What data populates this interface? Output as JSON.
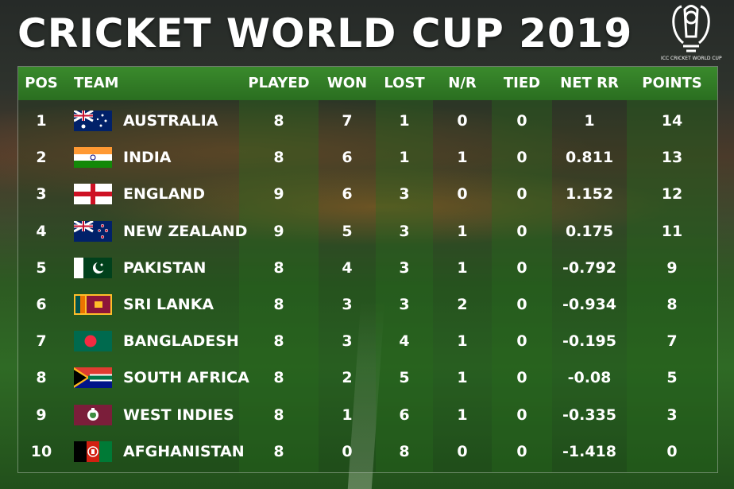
{
  "title": "CRICKET WORLD CUP 2019",
  "logo": {
    "icon": "trophy-icon",
    "text": "ICC CRICKET WORLD CUP"
  },
  "columns": [
    "POS",
    "TEAM",
    "PLAYED",
    "WON",
    "LOST",
    "N/R",
    "TIED",
    "NET RR",
    "POINTS"
  ],
  "rows": [
    {
      "pos": "1",
      "team": "AUSTRALIA",
      "flag": "australia-flag-icon",
      "played": "8",
      "won": "7",
      "lost": "1",
      "nr": "0",
      "tied": "0",
      "netrr": "1",
      "points": "14"
    },
    {
      "pos": "2",
      "team": "INDIA",
      "flag": "india-flag-icon",
      "played": "8",
      "won": "6",
      "lost": "1",
      "nr": "1",
      "tied": "0",
      "netrr": "0.811",
      "points": "13"
    },
    {
      "pos": "3",
      "team": "ENGLAND",
      "flag": "england-flag-icon",
      "played": "9",
      "won": "6",
      "lost": "3",
      "nr": "0",
      "tied": "0",
      "netrr": "1.152",
      "points": "12"
    },
    {
      "pos": "4",
      "team": "NEW ZEALAND",
      "flag": "new-zealand-flag-icon",
      "played": "9",
      "won": "5",
      "lost": "3",
      "nr": "1",
      "tied": "0",
      "netrr": "0.175",
      "points": "11"
    },
    {
      "pos": "5",
      "team": "PAKISTAN",
      "flag": "pakistan-flag-icon",
      "played": "8",
      "won": "4",
      "lost": "3",
      "nr": "1",
      "tied": "0",
      "netrr": "-0.792",
      "points": "9"
    },
    {
      "pos": "6",
      "team": "SRI LANKA",
      "flag": "sri-lanka-flag-icon",
      "played": "8",
      "won": "3",
      "lost": "3",
      "nr": "2",
      "tied": "0",
      "netrr": "-0.934",
      "points": "8"
    },
    {
      "pos": "7",
      "team": "BANGLADESH",
      "flag": "bangladesh-flag-icon",
      "played": "8",
      "won": "3",
      "lost": "4",
      "nr": "1",
      "tied": "0",
      "netrr": "-0.195",
      "points": "7"
    },
    {
      "pos": "8",
      "team": "SOUTH AFRICA",
      "flag": "south-africa-flag-icon",
      "played": "8",
      "won": "2",
      "lost": "5",
      "nr": "1",
      "tied": "0",
      "netrr": "-0.08",
      "points": "5"
    },
    {
      "pos": "9",
      "team": "WEST INDIES",
      "flag": "west-indies-flag-icon",
      "played": "8",
      "won": "1",
      "lost": "6",
      "nr": "1",
      "tied": "0",
      "netrr": "-0.335",
      "points": "3"
    },
    {
      "pos": "10",
      "team": "AFGHANISTAN",
      "flag": "afghanistan-flag-icon",
      "played": "8",
      "won": "0",
      "lost": "8",
      "nr": "0",
      "tied": "0",
      "netrr": "-1.418",
      "points": "0"
    }
  ],
  "colors": {
    "header_green": "#2f7a24",
    "text": "#ffffff"
  }
}
